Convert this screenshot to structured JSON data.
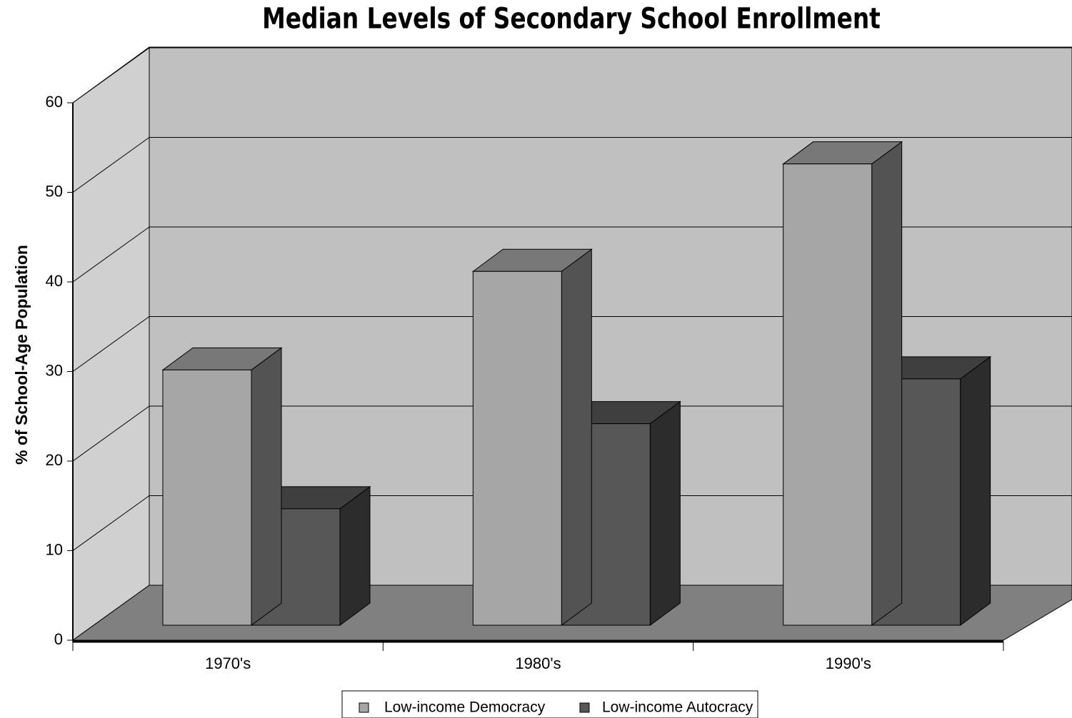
{
  "chart_data": {
    "type": "bar3d",
    "title": "Median Levels of Secondary School Enrollment",
    "y_label": "% of School-Age Population",
    "categories": [
      "1970's",
      "1980's",
      "1990's"
    ],
    "series": [
      {
        "name": "Low-income Democracy",
        "color": "#a6a6a6",
        "values": [
          28.5,
          39.5,
          51.5
        ]
      },
      {
        "name": "Low-income Autocracy",
        "color": "#575757",
        "values": [
          13,
          22.5,
          27.5
        ]
      }
    ],
    "ylim": [
      0,
      60
    ],
    "yticks": [
      0,
      10,
      20,
      30,
      40,
      50,
      60
    ],
    "grid": true,
    "legend": "bottom"
  }
}
